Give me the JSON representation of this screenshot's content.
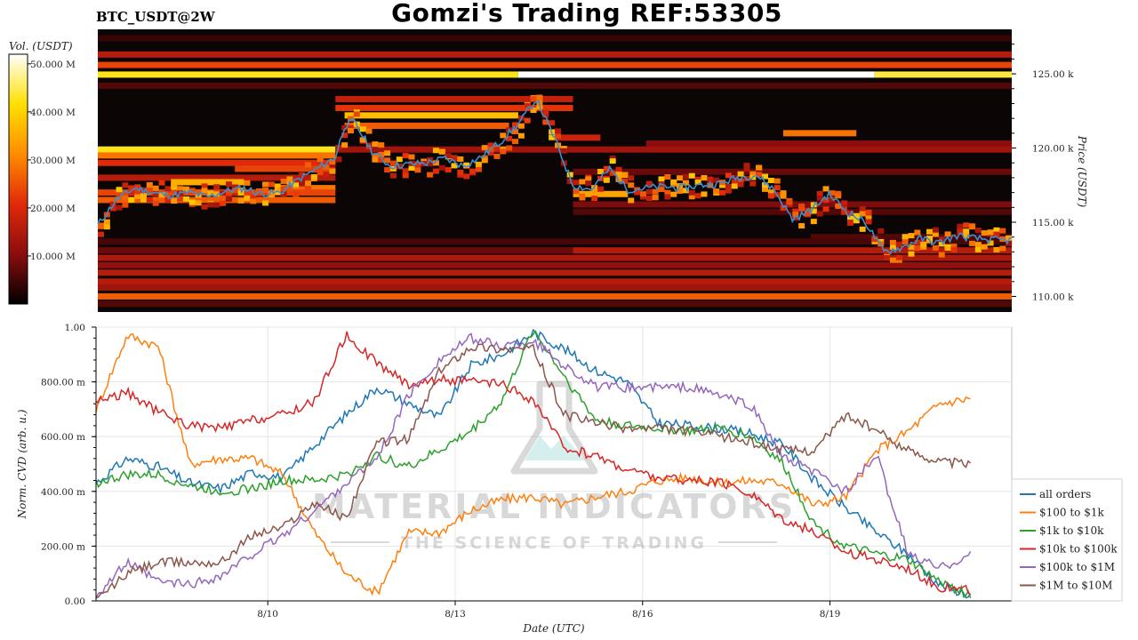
{
  "header": {
    "pair": "BTC_USDT@2W",
    "title": "Gomzi's Trading REF:53305"
  },
  "watermark": {
    "brand": "MATERIAL INDICATORS",
    "tagline": "THE SCIENCE OF TRADING",
    "icon": "flask-icon"
  },
  "colors": {
    "background": "#ffffff",
    "heatmap_background": "#0b0506",
    "price_line": "#3b8fd0"
  },
  "chart_data": [
    {
      "type": "heatmap",
      "title": "",
      "colorbar": {
        "label": "Vol. (USDT)",
        "ticks": [
          "10.000 M",
          "20.000 M",
          "30.000 M",
          "40.000 M",
          "50.000 M"
        ],
        "range": [
          0,
          52000000
        ],
        "colormap": [
          "#000000",
          "#8b0d0d",
          "#e02a0a",
          "#ff8c00",
          "#ffe000",
          "#ffffff"
        ]
      },
      "x_range": [
        "2025-08-07T00:00",
        "2025-08-21T16:00"
      ],
      "ylabel": "Price (USDT)",
      "ylim": [
        108950,
        128000
      ],
      "y_ticks": [
        {
          "value": 110000,
          "label": "110.00 k"
        },
        {
          "value": 115000,
          "label": "115.00 k"
        },
        {
          "value": 120000,
          "label": "120.00 k"
        },
        {
          "value": 125000,
          "label": "125.00 k"
        }
      ],
      "liquidity_bands": [
        {
          "price": 127400,
          "start": 0.0,
          "end": 1.0,
          "intensity": 0.08
        },
        {
          "price": 126300,
          "start": 0.0,
          "end": 1.0,
          "intensity": 0.3
        },
        {
          "price": 125600,
          "start": 0.0,
          "end": 1.0,
          "intensity": 0.45
        },
        {
          "price": 124950,
          "start": 0.0,
          "end": 0.46,
          "intensity": 0.82
        },
        {
          "price": 124950,
          "start": 0.46,
          "end": 0.85,
          "intensity": 1.0
        },
        {
          "price": 124950,
          "start": 0.85,
          "end": 1.0,
          "intensity": 0.85
        },
        {
          "price": 124200,
          "start": 0.0,
          "end": 1.0,
          "intensity": 0.12
        },
        {
          "price": 123300,
          "start": 0.26,
          "end": 0.52,
          "intensity": 0.33
        },
        {
          "price": 122700,
          "start": 0.26,
          "end": 0.52,
          "intensity": 0.42
        },
        {
          "price": 122200,
          "start": 0.27,
          "end": 0.46,
          "intensity": 0.72
        },
        {
          "price": 121500,
          "start": 0.27,
          "end": 0.45,
          "intensity": 0.5
        },
        {
          "price": 121000,
          "start": 0.75,
          "end": 0.83,
          "intensity": 0.55
        },
        {
          "price": 120700,
          "start": 0.5,
          "end": 0.55,
          "intensity": 0.35
        },
        {
          "price": 120300,
          "start": 0.6,
          "end": 1.0,
          "intensity": 0.2
        },
        {
          "price": 119900,
          "start": 0.0,
          "end": 0.26,
          "intensity": 0.82
        },
        {
          "price": 119900,
          "start": 0.26,
          "end": 1.0,
          "intensity": 0.25
        },
        {
          "price": 119500,
          "start": 0.0,
          "end": 0.26,
          "intensity": 0.55
        },
        {
          "price": 119000,
          "start": 0.0,
          "end": 0.26,
          "intensity": 0.4
        },
        {
          "price": 118600,
          "start": 0.15,
          "end": 0.26,
          "intensity": 0.45
        },
        {
          "price": 118400,
          "start": 0.52,
          "end": 1.0,
          "intensity": 0.15
        },
        {
          "price": 118000,
          "start": 0.0,
          "end": 0.26,
          "intensity": 0.3
        },
        {
          "price": 117700,
          "start": 0.08,
          "end": 0.16,
          "intensity": 0.68
        },
        {
          "price": 117300,
          "start": 0.2,
          "end": 0.26,
          "intensity": 0.55
        },
        {
          "price": 117000,
          "start": 0.0,
          "end": 0.26,
          "intensity": 0.45
        },
        {
          "price": 116900,
          "start": 0.52,
          "end": 0.58,
          "intensity": 0.65
        },
        {
          "price": 116500,
          "start": 0.0,
          "end": 0.26,
          "intensity": 0.5
        },
        {
          "price": 116200,
          "start": 0.52,
          "end": 1.0,
          "intensity": 0.18
        },
        {
          "price": 115700,
          "start": 0.52,
          "end": 1.0,
          "intensity": 0.12
        },
        {
          "price": 114000,
          "start": 0.78,
          "end": 1.0,
          "intensity": 0.12
        },
        {
          "price": 113700,
          "start": 0.0,
          "end": 1.0,
          "intensity": 0.1
        },
        {
          "price": 113100,
          "start": 0.0,
          "end": 0.52,
          "intensity": 0.16
        },
        {
          "price": 113100,
          "start": 0.52,
          "end": 1.0,
          "intensity": 0.3
        },
        {
          "price": 112600,
          "start": 0.0,
          "end": 1.0,
          "intensity": 0.28
        },
        {
          "price": 112100,
          "start": 0.0,
          "end": 1.0,
          "intensity": 0.22
        },
        {
          "price": 111600,
          "start": 0.0,
          "end": 1.0,
          "intensity": 0.3
        },
        {
          "price": 111000,
          "start": 0.0,
          "end": 1.0,
          "intensity": 0.3
        },
        {
          "price": 110600,
          "start": 0.0,
          "end": 1.0,
          "intensity": 0.25
        },
        {
          "price": 110000,
          "start": 0.0,
          "end": 1.0,
          "intensity": 0.5
        },
        {
          "price": 109500,
          "start": 0.0,
          "end": 1.0,
          "intensity": 0.12
        }
      ],
      "price_series": {
        "name": "",
        "t": [
          0,
          0.02,
          0.04,
          0.06,
          0.08,
          0.1,
          0.12,
          0.14,
          0.16,
          0.18,
          0.2,
          0.22,
          0.24,
          0.26,
          0.27,
          0.28,
          0.3,
          0.32,
          0.34,
          0.36,
          0.38,
          0.4,
          0.42,
          0.44,
          0.46,
          0.48,
          0.5,
          0.52,
          0.54,
          0.56,
          0.58,
          0.6,
          0.62,
          0.64,
          0.66,
          0.68,
          0.7,
          0.72,
          0.74,
          0.76,
          0.78,
          0.8,
          0.82,
          0.84,
          0.86,
          0.88,
          0.9,
          0.92,
          0.94,
          0.96,
          0.98,
          1.0
        ],
        "values": [
          114800,
          116500,
          117300,
          117000,
          116800,
          117000,
          116700,
          117100,
          117300,
          116900,
          117000,
          117900,
          118600,
          119400,
          121500,
          121800,
          119800,
          118800,
          118900,
          119000,
          119300,
          118800,
          119400,
          120400,
          121600,
          123300,
          120600,
          117500,
          117200,
          118600,
          117200,
          117300,
          117400,
          117300,
          117500,
          117600,
          118000,
          118200,
          117200,
          115200,
          115800,
          116900,
          115700,
          115000,
          113000,
          113300,
          113900,
          113600,
          114100,
          113900,
          113800,
          113800
        ]
      }
    },
    {
      "type": "line",
      "title": "",
      "xlabel": "Date (UTC)",
      "ylabel": "Norm. CVD (arb. u.)",
      "x_range": [
        "2025-08-07T00:00",
        "2025-08-21T16:00"
      ],
      "ylim": [
        0,
        1
      ],
      "y_ticks": [
        {
          "value": 0,
          "label": "0.00"
        },
        {
          "value": 0.2,
          "label": "200.00 m"
        },
        {
          "value": 0.4,
          "label": "400.00 m"
        },
        {
          "value": 0.6,
          "label": "600.00 m"
        },
        {
          "value": 0.8,
          "label": "800.00 m"
        },
        {
          "value": 1.0,
          "label": "1.00"
        }
      ],
      "x_ticks": [
        {
          "value": 2.75,
          "label": "8/10"
        },
        {
          "value": 5.75,
          "label": "8/13"
        },
        {
          "value": 8.75,
          "label": "8/16"
        },
        {
          "value": 11.75,
          "label": "8/19"
        }
      ],
      "grid": true,
      "legend_position": "right",
      "x": [
        0,
        0.5,
        1,
        1.5,
        2,
        2.5,
        3,
        3.5,
        4,
        4.5,
        5,
        5.5,
        6,
        6.5,
        7,
        7.5,
        8,
        8.5,
        9,
        9.5,
        10,
        10.5,
        11,
        11.5,
        12,
        12.5,
        13,
        13.5,
        14
      ],
      "series": [
        {
          "name": "all orders",
          "color": "#1f77b4",
          "values": [
            0.43,
            0.52,
            0.49,
            0.43,
            0.41,
            0.47,
            0.45,
            0.57,
            0.68,
            0.78,
            0.72,
            0.67,
            0.86,
            0.9,
            0.98,
            0.92,
            0.84,
            0.8,
            0.65,
            0.64,
            0.63,
            0.61,
            0.57,
            0.44,
            0.34,
            0.25,
            0.17,
            0.06,
            0.02
          ]
        },
        {
          "name": "$100 to $1k",
          "color": "#ff7f0e",
          "values": [
            0.7,
            0.97,
            0.93,
            0.5,
            0.52,
            0.52,
            0.46,
            0.25,
            0.1,
            0.03,
            0.25,
            0.25,
            0.33,
            0.37,
            0.38,
            0.35,
            0.38,
            0.4,
            0.44,
            0.45,
            0.43,
            0.44,
            0.43,
            0.35,
            0.38,
            0.55,
            0.62,
            0.72,
            0.74
          ]
        },
        {
          "name": "$1k to $10k",
          "color": "#2ca02c",
          "values": [
            0.43,
            0.46,
            0.46,
            0.42,
            0.4,
            0.41,
            0.44,
            0.44,
            0.46,
            0.53,
            0.49,
            0.55,
            0.62,
            0.73,
            0.99,
            0.82,
            0.66,
            0.64,
            0.63,
            0.62,
            0.63,
            0.6,
            0.5,
            0.28,
            0.2,
            0.17,
            0.15,
            0.07,
            0.02
          ]
        },
        {
          "name": "$10k to $100k",
          "color": "#d62728",
          "values": [
            0.73,
            0.76,
            0.69,
            0.64,
            0.63,
            0.66,
            0.68,
            0.73,
            0.97,
            0.87,
            0.79,
            0.81,
            0.8,
            0.79,
            0.73,
            0.56,
            0.53,
            0.48,
            0.45,
            0.44,
            0.43,
            0.39,
            0.3,
            0.25,
            0.18,
            0.15,
            0.12,
            0.05,
            0.04
          ]
        },
        {
          "name": "$100k to $1M",
          "color": "#9467bd",
          "values": [
            0.02,
            0.14,
            0.07,
            0.06,
            0.09,
            0.17,
            0.24,
            0.33,
            0.43,
            0.52,
            0.75,
            0.88,
            0.96,
            0.93,
            0.95,
            0.86,
            0.78,
            0.78,
            0.78,
            0.78,
            0.75,
            0.71,
            0.52,
            0.47,
            0.4,
            0.53,
            0.17,
            0.12,
            0.17
          ]
        },
        {
          "name": "$1M to $10M",
          "color": "#8c564b",
          "values": [
            0.0,
            0.1,
            0.14,
            0.14,
            0.14,
            0.24,
            0.27,
            0.36,
            0.3,
            0.58,
            0.59,
            0.84,
            0.93,
            0.92,
            0.92,
            0.68,
            0.65,
            0.63,
            0.63,
            0.62,
            0.6,
            0.58,
            0.55,
            0.55,
            0.68,
            0.62,
            0.55,
            0.51,
            0.5
          ]
        }
      ]
    }
  ]
}
